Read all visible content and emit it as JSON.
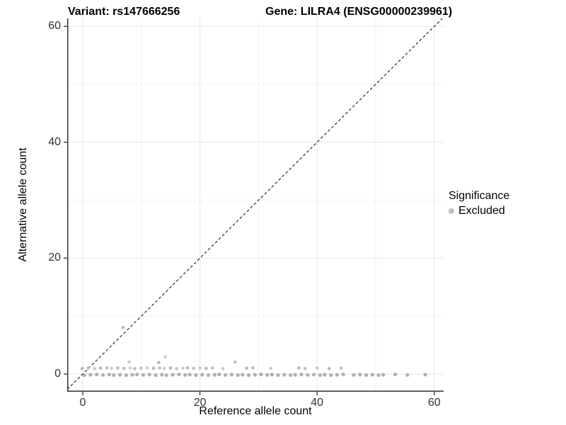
{
  "titles": {
    "variant": "Variant: rs147666256",
    "gene": "Gene: LILRA4 (ENSG00000239961)"
  },
  "chart_data": {
    "type": "scatter",
    "title": "Variant: rs147666256 — Gene: LILRA4 (ENSG00000239961)",
    "xlabel": "Reference allele count",
    "ylabel": "Alternative allele count",
    "xlim": [
      -3,
      63
    ],
    "ylim": [
      -3,
      63
    ],
    "x_ticks": [
      0,
      20,
      40,
      60
    ],
    "y_ticks": [
      0,
      20,
      40,
      60
    ],
    "x_minor_gridlines": [
      10,
      30,
      50
    ],
    "y_minor_gridlines": [
      10,
      30,
      50
    ],
    "grid": true,
    "reference_line": {
      "type": "identity y=x",
      "style": "dashed",
      "color": "#1a1a1a"
    },
    "legend": {
      "title": "Significance",
      "position": "right",
      "items": [
        {
          "label": "Excluded",
          "color": "#bdbdbd"
        }
      ]
    },
    "series": [
      {
        "name": "Excluded",
        "color": "#bdbdbd",
        "points": [
          [
            0,
            0
          ],
          [
            1,
            0
          ],
          [
            2,
            0
          ],
          [
            3,
            0
          ],
          [
            4,
            0
          ],
          [
            5,
            0
          ],
          [
            6,
            0
          ],
          [
            7,
            0
          ],
          [
            8,
            0
          ],
          [
            9,
            0
          ],
          [
            10,
            0
          ],
          [
            11,
            0
          ],
          [
            12,
            0
          ],
          [
            13,
            0
          ],
          [
            14,
            0
          ],
          [
            15,
            0
          ],
          [
            16,
            0
          ],
          [
            17,
            0
          ],
          [
            18,
            0
          ],
          [
            19,
            0
          ],
          [
            20,
            0
          ],
          [
            21,
            0
          ],
          [
            22,
            0
          ],
          [
            23,
            0
          ],
          [
            24,
            0
          ],
          [
            25,
            0
          ],
          [
            26,
            0
          ],
          [
            27,
            0
          ],
          [
            28,
            0
          ],
          [
            29,
            0
          ],
          [
            30,
            0
          ],
          [
            31,
            0
          ],
          [
            32,
            0
          ],
          [
            33,
            0
          ],
          [
            34,
            0
          ],
          [
            35,
            0
          ],
          [
            36,
            0
          ],
          [
            37,
            0
          ],
          [
            38,
            0
          ],
          [
            39,
            0
          ],
          [
            40,
            0
          ],
          [
            41,
            0
          ],
          [
            42,
            0
          ],
          [
            43,
            0
          ],
          [
            44,
            0
          ],
          [
            46,
            0
          ],
          [
            47,
            0
          ],
          [
            48,
            0
          ],
          [
            49,
            0
          ],
          [
            50,
            0
          ],
          [
            51,
            0
          ],
          [
            53,
            0
          ],
          [
            55,
            0
          ],
          [
            58,
            0
          ],
          [
            0,
            1
          ],
          [
            1,
            1
          ],
          [
            2,
            1
          ],
          [
            3,
            1
          ],
          [
            4,
            1
          ],
          [
            5,
            1
          ],
          [
            6,
            1
          ],
          [
            7,
            1
          ],
          [
            8,
            1
          ],
          [
            9,
            1
          ],
          [
            10,
            1
          ],
          [
            11,
            1
          ],
          [
            12,
            1
          ],
          [
            13,
            1
          ],
          [
            14,
            1
          ],
          [
            15,
            1
          ],
          [
            16,
            1
          ],
          [
            17,
            1
          ],
          [
            18,
            1
          ],
          [
            19,
            1
          ],
          [
            20,
            1
          ],
          [
            21,
            1
          ],
          [
            22,
            1
          ],
          [
            24,
            1
          ],
          [
            28,
            1
          ],
          [
            29,
            1
          ],
          [
            32,
            1
          ],
          [
            37,
            1
          ],
          [
            38,
            1
          ],
          [
            40,
            1
          ],
          [
            42,
            1
          ],
          [
            44,
            1
          ],
          [
            8,
            2
          ],
          [
            13,
            2
          ],
          [
            26,
            2
          ],
          [
            14,
            3
          ],
          [
            7,
            8
          ]
        ]
      }
    ],
    "colors": {
      "point_shades": [
        "#b3b3b3",
        "#bdbdbd",
        "#c8c8c8"
      ],
      "point_dense": "#ababab",
      "grid_major": "#e6e6e6",
      "grid_minor": "#f2f2f2",
      "axis_line": "#333333",
      "tick_text": "#333333"
    }
  }
}
